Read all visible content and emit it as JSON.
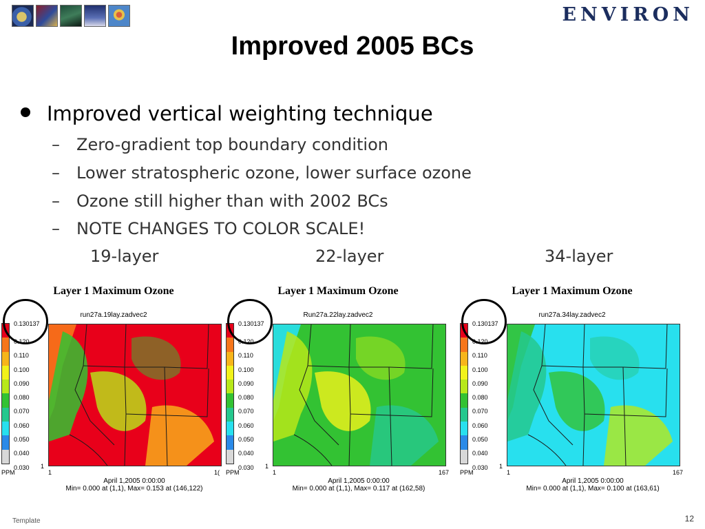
{
  "header": {
    "brand": "ENVIRON",
    "title": "Improved 2005 BCs"
  },
  "bullets": {
    "main": "Improved vertical weighting technique",
    "subs": [
      "Zero-gradient top boundary condition",
      "Lower stratospheric ozone, lower surface ozone",
      "Ozone still higher than with 2002 BCs",
      "NOTE CHANGES TO COLOR SCALE!"
    ],
    "dash": "–"
  },
  "layer_labels": [
    "19-layer",
    "22-layer",
    "34-layer"
  ],
  "panels": [
    {
      "title": "Layer 1 Maximum Ozone",
      "run": "run27a.19lay.zadvec2",
      "top_value": "0.130137",
      "x_end": "1(",
      "date": "April 1,2005 0:00:00",
      "minmax": "Min=   0.000 at (1,1), Max=   0.153 at (146,122)",
      "palette": "red"
    },
    {
      "title": "Layer 1 Maximum Ozone",
      "run": "Run27a.22lay.zadvec2",
      "top_value": "0.130137",
      "x_end": "167",
      "date": "April 1,2005 0:00:00",
      "minmax": "Min=   0.000 at (1,1), Max=   0.117 at (162,58)",
      "palette": "green"
    },
    {
      "title": "Layer 1 Maximum Ozone",
      "run": "run27a.34lay.zadvec2",
      "top_value": "0.130137",
      "x_end": "167",
      "date": "April 1,2005 0:00:00",
      "minmax": "Min=   0.000 at (1,1), Max=   0.100 at (163,61)",
      "palette": "cyan"
    }
  ],
  "scale": {
    "ticks": [
      "0.120",
      "0.110",
      "0.100",
      "0.090",
      "0.080",
      "0.070",
      "0.060",
      "0.050",
      "0.040",
      "0.030"
    ],
    "colors": [
      "#e8001a",
      "#f7761a",
      "#f7b51a",
      "#f2f21a",
      "#b7e81a",
      "#33c233",
      "#25c88e",
      "#28e0ee",
      "#2a8ae8",
      "#d8d8d8"
    ],
    "unit": "PPM",
    "one": "1"
  },
  "footer": {
    "left": "Template",
    "page": "12"
  }
}
